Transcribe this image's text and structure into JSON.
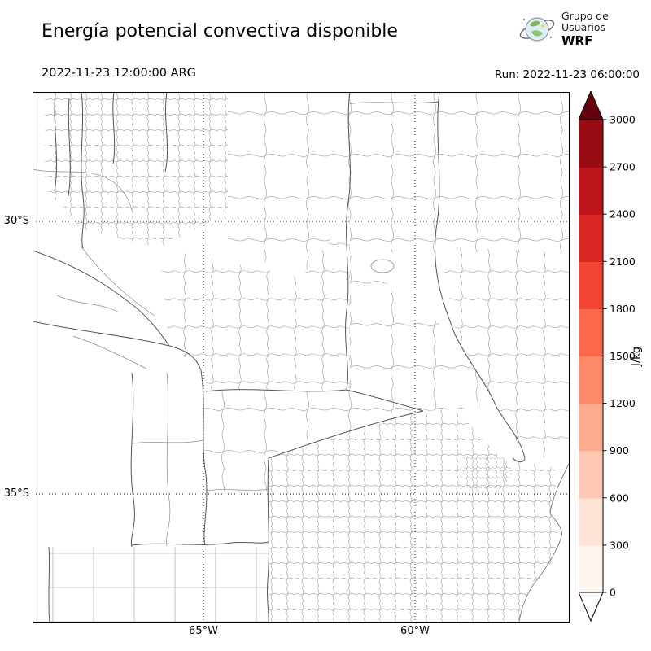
{
  "header": {
    "title": "Energía potencial convectiva disponible",
    "logo": {
      "org_line1": "Grupo de",
      "org_line2": "Usuarios",
      "brand": "WRF"
    },
    "valid_time": "2022-11-23 12:00:00 ARG",
    "run_label": "Run: 2022-11-23 06:00:00"
  },
  "map": {
    "y_ticks": [
      "30°S",
      "35°S"
    ],
    "x_ticks": [
      "65°W",
      "60°W"
    ]
  },
  "colorbar": {
    "label": "J/kg",
    "ticks": [
      "0",
      "300",
      "600",
      "900",
      "1200",
      "1500",
      "1800",
      "2100",
      "2400",
      "2700",
      "3000"
    ],
    "colors": [
      "#fff5f0",
      "#fee3d6",
      "#fdc9b4",
      "#fcab8f",
      "#fc8a6b",
      "#fb694a",
      "#f14432",
      "#d92523",
      "#bc141a",
      "#980c13"
    ],
    "under_color": "#ffffff",
    "over_color": "#67000d"
  },
  "chart_data": {
    "type": "heatmap",
    "title": "Energía potencial convectiva disponible",
    "colorbar_label": "J/kg",
    "colormap": "Reds",
    "levels": [
      0,
      300,
      600,
      900,
      1200,
      1500,
      1800,
      2100,
      2400,
      2700,
      3000
    ],
    "x_ticks": [
      "65°W",
      "60°W"
    ],
    "y_ticks": [
      "30°S",
      "35°S"
    ],
    "visible_field_values": "no shaded CAPE values visible; map area appears blank/white with administrative boundaries only"
  }
}
